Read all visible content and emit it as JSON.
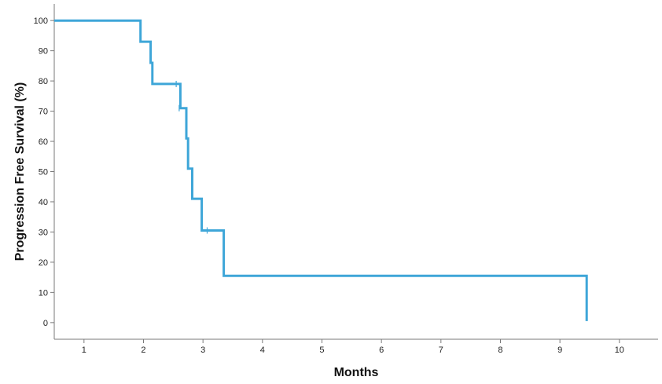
{
  "chart_data": {
    "type": "line",
    "subtype": "kaplan-meier-step",
    "title": "",
    "xlabel": "Months",
    "ylabel": "Progression Free Survival (%)",
    "xlim": [
      0.5,
      10.65
    ],
    "ylim": [
      -5.5,
      105.5
    ],
    "x_ticks": [
      1,
      2,
      3,
      4,
      5,
      6,
      7,
      8,
      9,
      10
    ],
    "y_ticks": [
      0,
      10,
      20,
      30,
      40,
      50,
      60,
      70,
      80,
      90,
      100
    ],
    "grid": false,
    "legend": "none",
    "series": [
      {
        "color": "#3ea6d8",
        "step_points": [
          {
            "x": 0.5,
            "y": 100
          },
          {
            "x": 1.95,
            "y": 100
          },
          {
            "x": 1.95,
            "y": 93
          },
          {
            "x": 2.12,
            "y": 93
          },
          {
            "x": 2.12,
            "y": 86
          },
          {
            "x": 2.15,
            "y": 86
          },
          {
            "x": 2.15,
            "y": 79
          },
          {
            "x": 2.62,
            "y": 79
          },
          {
            "x": 2.62,
            "y": 71
          },
          {
            "x": 2.72,
            "y": 71
          },
          {
            "x": 2.72,
            "y": 61
          },
          {
            "x": 2.75,
            "y": 61
          },
          {
            "x": 2.75,
            "y": 51
          },
          {
            "x": 2.82,
            "y": 51
          },
          {
            "x": 2.82,
            "y": 41
          },
          {
            "x": 2.98,
            "y": 41
          },
          {
            "x": 2.98,
            "y": 30.5
          },
          {
            "x": 3.35,
            "y": 30.5
          },
          {
            "x": 3.35,
            "y": 15.5
          },
          {
            "x": 9.45,
            "y": 15.5
          },
          {
            "x": 9.45,
            "y": 0.5
          }
        ],
        "censored": [
          {
            "x": 2.55,
            "y": 79
          },
          {
            "x": 2.6,
            "y": 71
          },
          {
            "x": 3.07,
            "y": 30.5
          }
        ]
      }
    ]
  }
}
